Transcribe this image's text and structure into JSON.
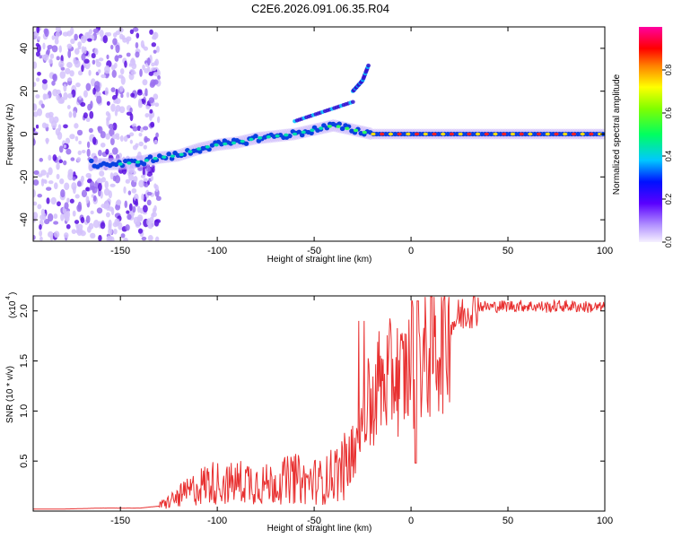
{
  "title": "C2E6.2026.091.06.35.R04",
  "chart_data": [
    {
      "type": "heatmap",
      "name": "spectrogram",
      "xlabel": "Height of straight line (km)",
      "ylabel": "Frequency (Hz)",
      "xlim": [
        -195,
        100
      ],
      "ylim": [
        -50,
        50
      ],
      "xticks": [
        -150,
        -100,
        -50,
        0,
        50,
        100
      ],
      "yticks": [
        -40,
        -20,
        0,
        20,
        40
      ],
      "colorbar": {
        "label": "Normalized spectral amplitude",
        "range": [
          0,
          1
        ],
        "ticks": [
          0.0,
          0.2,
          0.4,
          0.6,
          0.8
        ]
      },
      "ridge": {
        "x": [
          -160,
          -150,
          -140,
          -130,
          -120,
          -110,
          -100,
          -90,
          -80,
          -70,
          -60,
          -50,
          -40,
          -30,
          -25,
          -20,
          -10,
          0,
          20,
          40,
          60,
          80,
          100
        ],
        "y": [
          -14,
          -14,
          -13,
          -11,
          -10,
          -7,
          -5,
          -4,
          -2,
          -1,
          0,
          2,
          4,
          2,
          1,
          0,
          0,
          0,
          0,
          0,
          0,
          0,
          0
        ]
      },
      "branches": [
        {
          "x": [
            -60,
            -50,
            -40,
            -30
          ],
          "y": [
            6,
            9,
            12,
            15
          ]
        },
        {
          "x": [
            -30,
            -25,
            -22
          ],
          "y": [
            20,
            25,
            32
          ]
        }
      ]
    },
    {
      "type": "line",
      "name": "snr",
      "xlabel": "Height of straight line (km)",
      "ylabel": "SNR (10 * v/v)",
      "multiplier": "(x10",
      "multiplier_exp": "4",
      "xlim": [
        -195,
        100
      ],
      "ylim": [
        0,
        2.15
      ],
      "xticks": [
        -150,
        -100,
        -50,
        0,
        50,
        100
      ],
      "yticks": [
        0.5,
        1.0,
        1.5,
        2.0
      ],
      "color": "#e83030",
      "series": [
        {
          "name": "SNR",
          "x": [
            -195,
            -180,
            -160,
            -140,
            -130,
            -125,
            -120,
            -115,
            -110,
            -105,
            -100,
            -95,
            -90,
            -85,
            -80,
            -75,
            -70,
            -65,
            -60,
            -55,
            -50,
            -45,
            -40,
            -35,
            -30,
            -27,
            -25,
            -23,
            -21,
            -19,
            -17,
            -15,
            -12,
            -10,
            -8,
            -6,
            -4,
            -2,
            0,
            2,
            4,
            6,
            8,
            10,
            12,
            15,
            18,
            20,
            25,
            30,
            35,
            40,
            50,
            60,
            70,
            80,
            90,
            100
          ],
          "y": [
            0.02,
            0.02,
            0.03,
            0.03,
            0.05,
            0.1,
            0.15,
            0.2,
            0.25,
            0.3,
            0.3,
            0.28,
            0.3,
            0.32,
            0.3,
            0.28,
            0.3,
            0.32,
            0.35,
            0.3,
            0.32,
            0.3,
            0.4,
            0.45,
            0.55,
            0.8,
            0.95,
            1.1,
            1.0,
            1.2,
            1.3,
            1.25,
            1.3,
            1.35,
            1.4,
            1.3,
            1.35,
            1.4,
            1.45,
            1.5,
            1.55,
            1.5,
            1.55,
            1.6,
            1.65,
            1.7,
            1.8,
            1.85,
            1.95,
            2.02,
            2.05,
            2.04,
            2.05,
            2.05,
            2.04,
            2.05,
            2.04,
            2.03
          ]
        }
      ]
    }
  ]
}
